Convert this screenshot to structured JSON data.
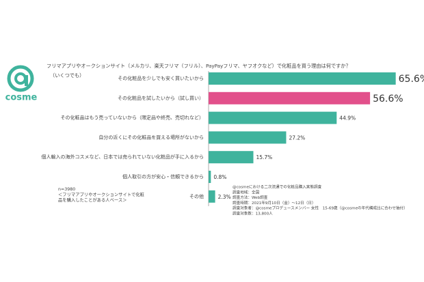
{
  "chart_data": {
    "type": "bar",
    "orientation": "horizontal",
    "brand": "cosme",
    "title": "フリマアプリやオークションサイト（メルカリ、楽天フリマ（フリル）、PayPayフリマ、ヤフオクなど）で化粧品を買う理由は何ですか？",
    "subtitle": "（いくつでも）",
    "categories": [
      "その化粧品を少しでも安く買いたいから",
      "その化粧品を試したいから（試し買い）",
      "その化粧品はもう売っていないから（限定品や終売、売切れなど）",
      "自分の近くにその化粧品を買える場所がないから",
      "個人輸入の海外コスメなど、日本では売られていない化粧品が手に入るから",
      "個人取引の方が安心・信頼できるから",
      "その他"
    ],
    "values": [
      65.6,
      56.6,
      44.9,
      27.2,
      15.7,
      0.8,
      2.3
    ],
    "value_labels": [
      "65.6%",
      "56.6%",
      "44.9%",
      "27.2%",
      "15.7%",
      "0.8%",
      "2.3%"
    ],
    "colors": [
      "#3fb39d",
      "#e2508b",
      "#3fb39d",
      "#3fb39d",
      "#3fb39d",
      "#3fb39d",
      "#3fb39d"
    ],
    "xlim": [
      0,
      70
    ],
    "note": [
      "n=3980",
      "＜フリマアプリやオークションサイトで化粧",
      "品を購入したことがある人ベース＞"
    ],
    "source": [
      "@cosmeにおける二次流通での化粧品購入実態調査",
      "調査地域：全国",
      "調査方法：Web調査",
      "調査時期：2021年9月10日（金）～12日（日）",
      "調査対象者：@cosmeプロデュースメンバー 女性　15-69歳（@cosmeの年代構成比に合わせ抽付）",
      "調査対象数：13,800人"
    ]
  }
}
